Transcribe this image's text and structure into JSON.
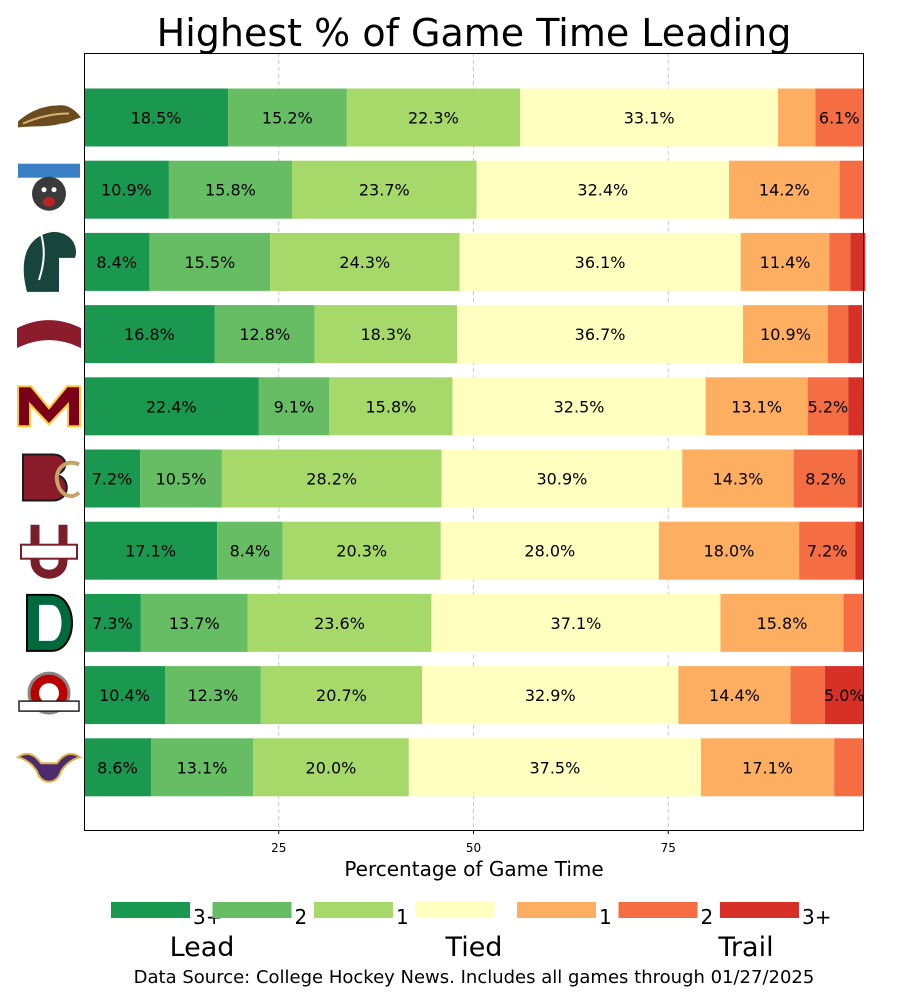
{
  "chart_data": {
    "type": "bar",
    "orientation": "horizontal",
    "stacked": true,
    "title": "Highest % of Game Time Leading",
    "xlabel": "Percentage of Game Time",
    "ylabel": "",
    "xlim": [
      0,
      100
    ],
    "xticks": [
      25,
      50,
      75
    ],
    "grid": "vertical dashed",
    "segment_labels": [
      "Lead 3+",
      "Lead 2",
      "Lead 1",
      "Tied",
      "Trail 1",
      "Trail 2",
      "Trail 3+"
    ],
    "categories": [
      {
        "team": "Western Michigan",
        "logo": "western-michigan-bronco-logo"
      },
      {
        "team": "Maine",
        "logo": "maine-black-bear-logo"
      },
      {
        "team": "Michigan State",
        "logo": "michigan-state-spartan-logo"
      },
      {
        "team": "Denver",
        "logo": "denver-wordmark-logo"
      },
      {
        "team": "Minnesota",
        "logo": "minnesota-m-logo"
      },
      {
        "team": "Boston College",
        "logo": "boston-college-bc-logo"
      },
      {
        "team": "UMass",
        "logo": "umass-logo"
      },
      {
        "team": "Dartmouth",
        "logo": "dartmouth-d-logo"
      },
      {
        "team": "Ohio State",
        "logo": "ohio-state-logo"
      },
      {
        "team": "Minnesota State",
        "logo": "minnesota-state-maverick-logo"
      }
    ],
    "values": [
      [
        18.5,
        15.2,
        22.3,
        33.1,
        4.8,
        6.1,
        0.0
      ],
      [
        10.9,
        15.8,
        23.7,
        32.4,
        14.2,
        3.0,
        0.0
      ],
      [
        8.4,
        15.5,
        24.3,
        36.1,
        11.4,
        2.7,
        1.9
      ],
      [
        16.8,
        12.8,
        18.3,
        36.7,
        10.9,
        2.6,
        1.8
      ],
      [
        22.4,
        9.1,
        15.8,
        32.5,
        13.1,
        5.2,
        1.9
      ],
      [
        7.2,
        10.5,
        28.2,
        30.9,
        14.3,
        8.2,
        0.6
      ],
      [
        17.1,
        8.4,
        20.3,
        28.0,
        18.0,
        7.2,
        1.0
      ],
      [
        7.3,
        13.7,
        23.6,
        37.1,
        15.8,
        2.5,
        0.0
      ],
      [
        10.4,
        12.3,
        20.7,
        32.9,
        14.4,
        4.4,
        5.0
      ],
      [
        8.6,
        13.1,
        20.0,
        37.5,
        17.1,
        3.7,
        0.0
      ]
    ],
    "label_threshold": 4.9,
    "colors": [
      "#1a9850",
      "#66bd63",
      "#a6d96a",
      "#ffffbf",
      "#fdae61",
      "#f46d43",
      "#d73027"
    ],
    "legend": {
      "position": "bottom",
      "numbers": [
        "3+",
        "2",
        "1",
        "",
        "1",
        "2",
        "3+"
      ],
      "groups": [
        "Lead",
        "Tied",
        "Trail"
      ]
    },
    "source": "Data Source: College Hockey News. Includes all games through 01/27/2025"
  }
}
